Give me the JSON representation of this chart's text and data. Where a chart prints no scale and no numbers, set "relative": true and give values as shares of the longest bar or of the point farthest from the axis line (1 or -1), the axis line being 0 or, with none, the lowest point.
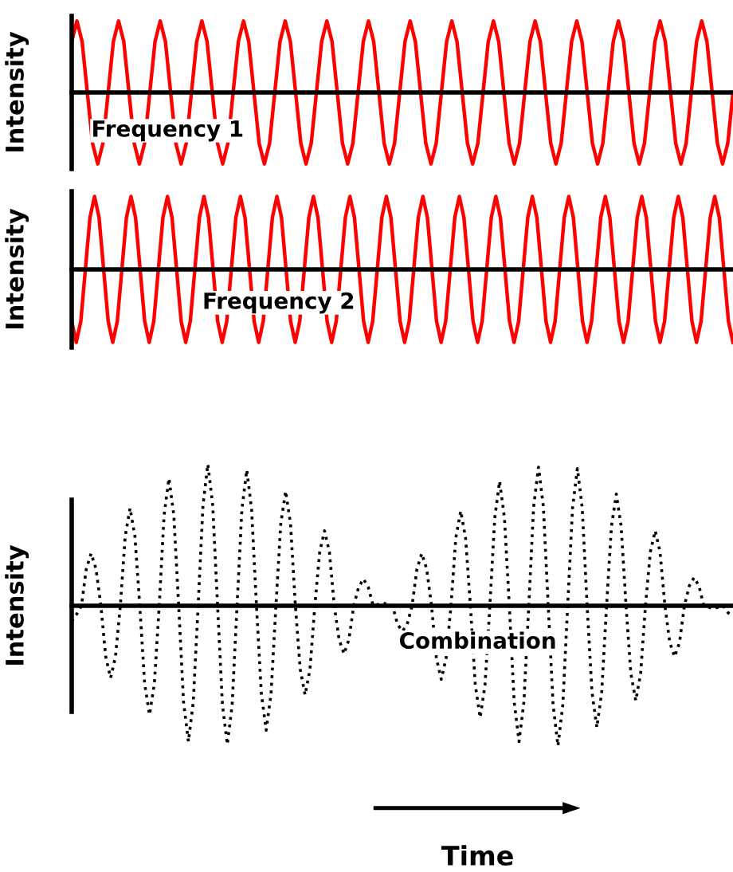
{
  "chart_data": [
    {
      "type": "line",
      "ylabel": "Intensity",
      "relative": true,
      "annotations": [
        "Frequency 1"
      ],
      "categories": [
        null,
        null,
        null,
        null,
        null,
        null,
        null,
        null,
        null,
        null,
        null,
        null,
        null,
        null,
        null,
        null,
        null,
        null,
        null,
        null,
        null,
        null,
        null,
        null,
        null,
        null,
        null,
        null,
        null,
        null,
        null,
        null,
        null,
        null,
        null,
        null,
        null,
        null,
        null,
        null,
        null,
        null,
        null,
        null,
        null,
        null,
        null,
        null,
        null,
        null,
        null,
        null,
        null,
        null,
        null,
        null,
        null,
        null,
        null,
        null,
        null,
        null,
        null,
        null,
        null,
        null,
        null,
        null,
        null,
        null,
        null,
        null,
        null,
        null,
        null,
        null,
        null,
        null,
        null,
        null,
        null,
        null,
        null,
        null,
        null,
        null,
        null,
        null,
        null,
        null,
        null,
        null,
        null,
        null,
        null,
        null,
        null,
        null,
        null,
        null,
        null,
        null,
        null,
        null,
        null,
        null,
        null,
        null,
        null,
        null,
        null,
        null,
        null,
        null,
        null,
        null,
        null,
        null,
        null,
        null,
        null,
        null,
        null,
        null,
        null,
        null,
        null,
        null
      ],
      "series": [
        {
          "color": "#ff0000",
          "line_style": "solid",
          "values": [
            0.71,
            1,
            0.71,
            0,
            -0.71,
            -1,
            -0.71,
            0,
            0.71,
            1,
            0.71,
            0,
            -0.71,
            -1,
            -0.71,
            0,
            0.71,
            1,
            0.71,
            0,
            -0.71,
            -1,
            -0.71,
            0,
            0.71,
            1,
            0.71,
            0,
            -0.71,
            -1,
            -0.71,
            0,
            0.71,
            1,
            0.71,
            0,
            -0.71,
            -1,
            -0.71,
            0,
            0.71,
            1,
            0.71,
            0,
            -0.71,
            -1,
            -0.71,
            0,
            0.71,
            1,
            0.71,
            0,
            -0.71,
            -1,
            -0.71,
            0,
            0.71,
            1,
            0.71,
            0,
            -0.71,
            -1,
            -0.71,
            0,
            0.71,
            1,
            0.71,
            0,
            -0.71,
            -1,
            -0.71,
            0,
            0.71,
            1,
            0.71,
            0,
            -0.71,
            -1,
            -0.71,
            0,
            0.71,
            1,
            0.71,
            0,
            -0.71,
            -1,
            -0.71,
            0,
            0.71,
            1,
            0.71,
            0,
            -0.71,
            -1,
            -0.71,
            0,
            0.71,
            1,
            0.71,
            0,
            -0.71,
            -1,
            -0.71,
            0,
            0.71,
            1,
            0.71,
            0,
            -0.71,
            -1,
            -0.71,
            0,
            0.71,
            1,
            0.71,
            0,
            -0.71,
            -1,
            -0.71,
            0,
            0.71,
            1,
            0.71,
            0,
            -0.71,
            -1,
            -0.71,
            0
          ]
        }
      ]
    },
    {
      "type": "line",
      "ylabel": "Intensity",
      "relative": true,
      "annotations": [
        "Frequency 2"
      ],
      "categories": [
        null,
        null,
        null,
        null,
        null,
        null,
        null,
        null,
        null,
        null,
        null,
        null,
        null,
        null,
        null,
        null,
        null,
        null,
        null,
        null,
        null,
        null,
        null,
        null,
        null,
        null,
        null,
        null,
        null,
        null,
        null,
        null,
        null,
        null,
        null,
        null,
        null,
        null,
        null,
        null,
        null,
        null,
        null,
        null,
        null,
        null,
        null,
        null,
        null,
        null,
        null,
        null,
        null,
        null,
        null,
        null,
        null,
        null,
        null,
        null,
        null,
        null,
        null,
        null,
        null,
        null,
        null,
        null,
        null,
        null,
        null,
        null,
        null,
        null,
        null,
        null,
        null,
        null,
        null,
        null,
        null,
        null,
        null,
        null,
        null,
        null,
        null,
        null,
        null,
        null,
        null,
        null,
        null,
        null,
        null,
        null,
        null,
        null,
        null,
        null,
        null,
        null,
        null,
        null,
        null,
        null,
        null,
        null,
        null,
        null,
        null,
        null,
        null,
        null,
        null,
        null,
        null,
        null,
        null,
        null,
        null,
        null,
        null,
        null,
        null,
        null,
        null,
        null,
        null,
        null,
        null,
        null,
        null,
        null,
        null,
        null,
        null,
        null,
        null,
        null,
        null,
        null,
        null,
        null,
        null,
        null
      ],
      "series": [
        {
          "color": "#ff0000",
          "line_style": "solid",
          "values": [
            -0.71,
            -1,
            -0.71,
            0,
            0.71,
            1,
            0.71,
            0,
            -0.71,
            -1,
            -0.71,
            0,
            0.71,
            1,
            0.71,
            0,
            -0.71,
            -1,
            -0.71,
            0,
            0.71,
            1,
            0.71,
            0,
            -0.71,
            -1,
            -0.71,
            0,
            0.71,
            1,
            0.71,
            0,
            -0.71,
            -1,
            -0.71,
            0,
            0.71,
            1,
            0.71,
            0,
            -0.71,
            -1,
            -0.71,
            0,
            0.71,
            1,
            0.71,
            0,
            -0.71,
            -1,
            -0.71,
            0,
            0.71,
            1,
            0.71,
            0,
            -0.71,
            -1,
            -0.71,
            0,
            0.71,
            1,
            0.71,
            0,
            -0.71,
            -1,
            -0.71,
            0,
            0.71,
            1,
            0.71,
            0,
            -0.71,
            -1,
            -0.71,
            0,
            0.71,
            1,
            0.71,
            0,
            -0.71,
            -1,
            -0.71,
            0,
            0.71,
            1,
            0.71,
            0,
            -0.71,
            -1,
            -0.71,
            0,
            0.71,
            1,
            0.71,
            0,
            -0.71,
            -1,
            -0.71,
            0,
            0.71,
            1,
            0.71,
            0,
            -0.71,
            -1,
            -0.71,
            0,
            0.71,
            1,
            0.71,
            0,
            -0.71,
            -1,
            -0.71,
            0,
            0.71,
            1,
            0.71,
            0,
            -0.71,
            -1,
            -0.71,
            0,
            0.71,
            1,
            0.71,
            0,
            -0.71,
            -1,
            -0.71,
            0,
            0.71,
            1,
            0.71,
            0,
            -0.71,
            -1,
            -0.71,
            0,
            0.71,
            1,
            0.71,
            0,
            -0.71,
            -1
          ]
        }
      ]
    },
    {
      "type": "line",
      "ylabel": "Intensity",
      "xlabel": "Time",
      "relative": true,
      "annotations": [
        "Combination"
      ],
      "categories": [
        null,
        null,
        null,
        null,
        null,
        null,
        null,
        null,
        null,
        null,
        null,
        null,
        null,
        null,
        null,
        null,
        null,
        null,
        null,
        null,
        null,
        null,
        null,
        null,
        null,
        null,
        null,
        null,
        null,
        null,
        null,
        null,
        null,
        null,
        null,
        null,
        null,
        null,
        null,
        null,
        null,
        null,
        null,
        null,
        null,
        null,
        null,
        null,
        null,
        null,
        null,
        null,
        null,
        null,
        null,
        null,
        null,
        null,
        null,
        null,
        null,
        null,
        null,
        null,
        null,
        null,
        null,
        null,
        null,
        null,
        null,
        null,
        null,
        null,
        null,
        null,
        null,
        null,
        null,
        null,
        null,
        null,
        null,
        null,
        null,
        null,
        null,
        null,
        null,
        null,
        null,
        null,
        null,
        null,
        null,
        null,
        null,
        null,
        null,
        null,
        null,
        null,
        null,
        null,
        null,
        null,
        null,
        null,
        null,
        null,
        null,
        null,
        null,
        null,
        null,
        null,
        null,
        null,
        null,
        null,
        null,
        null,
        null,
        null,
        null,
        null,
        null,
        null,
        null,
        null,
        null,
        null,
        null,
        null,
        null,
        null,
        null
      ],
      "series": [
        {
          "color": "#000000",
          "line_style": "dotted",
          "values": [
            -0.11,
            -0.06,
            0,
            0.26,
            0.37,
            0.26,
            0,
            -0.36,
            -0.51,
            -0.36,
            0,
            0.49,
            0.69,
            0.49,
            0,
            -0.55,
            -0.77,
            -0.55,
            0,
            0.64,
            0.9,
            0.64,
            0,
            -0.68,
            -0.96,
            -0.68,
            0,
            0.71,
            1,
            0.71,
            0,
            -0.7,
            -0.98,
            -0.7,
            0,
            0.68,
            0.96,
            0.68,
            0,
            -0.62,
            -0.88,
            -0.62,
            0,
            0.58,
            0.81,
            0.58,
            0,
            -0.45,
            -0.63,
            -0.45,
            0,
            0.38,
            0.53,
            0.38,
            0,
            -0.24,
            -0.34,
            -0.24,
            0,
            0.13,
            0.19,
            0.13,
            0,
            0.01,
            0.02,
            0.01,
            0,
            -0.13,
            -0.18,
            -0.13,
            0,
            0.26,
            0.37,
            0.26,
            0,
            -0.37,
            -0.52,
            -0.37,
            0,
            0.48,
            0.67,
            0.48,
            0,
            -0.56,
            -0.79,
            -0.56,
            0,
            0.62,
            0.88,
            0.62,
            0,
            -0.68,
            -0.96,
            -0.68,
            0,
            0.7,
            0.98,
            0.7,
            0,
            -0.7,
            -0.99,
            -0.7,
            0,
            0.69,
            0.97,
            0.69,
            0,
            -0.61,
            -0.86,
            -0.61,
            0,
            0.56,
            0.79,
            0.56,
            0,
            -0.48,
            -0.67,
            -0.48,
            0,
            0.38,
            0.53,
            0.38,
            0,
            -0.26,
            -0.36,
            -0.26,
            0,
            0.14,
            0.2,
            0.14,
            0,
            -0.01,
            -0.02,
            -0.01,
            0,
            -0.05,
            -0.07
          ]
        }
      ]
    }
  ]
}
